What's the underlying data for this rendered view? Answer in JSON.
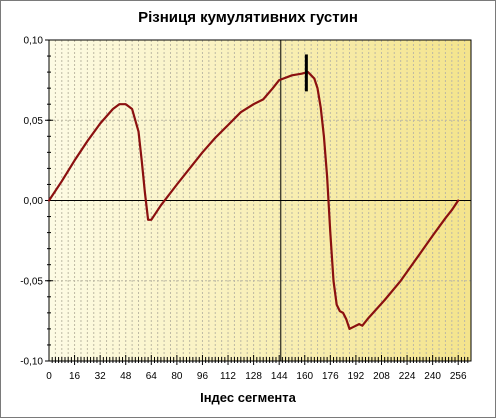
{
  "chart_data": {
    "type": "line",
    "title": "Різниця кумулятивних густин",
    "xlabel": "Індес сегмента",
    "ylabel": "",
    "xlim": [
      0,
      264
    ],
    "ylim": [
      -0.1,
      0.1
    ],
    "x_ticks": [
      0,
      16,
      32,
      48,
      64,
      80,
      96,
      112,
      128,
      144,
      160,
      176,
      192,
      208,
      224,
      240,
      256
    ],
    "y_ticks": [
      0.1,
      0.05,
      0.0,
      -0.05,
      -0.1
    ],
    "y_tick_labels": [
      "0,10",
      "0,05",
      "0,00",
      "-0,05",
      "-0,10"
    ],
    "grid": true,
    "reference_lines": {
      "x": 145,
      "y": 0
    },
    "marker": {
      "x": 161,
      "y_from": 0.068,
      "y_to": 0.091
    },
    "colors": {
      "line": "#8b1010",
      "bg_left": "#fdfbe4",
      "bg_right": "#f4e48c",
      "grid": "#bdb9a4"
    },
    "series": [
      {
        "x": [
          0,
          8,
          16,
          24,
          32,
          40,
          44,
          48,
          52,
          56,
          58,
          60,
          62,
          64,
          70,
          80,
          96,
          104,
          112,
          120,
          128,
          134,
          140,
          144,
          152,
          158,
          162,
          166,
          168,
          170,
          172,
          174,
          176,
          178,
          180,
          182,
          184,
          186,
          188,
          190,
          194,
          196,
          200,
          210,
          220,
          230,
          240,
          248,
          252,
          256
        ],
        "y": [
          0.0,
          0.012,
          0.025,
          0.037,
          0.048,
          0.057,
          0.06,
          0.06,
          0.057,
          0.043,
          0.025,
          0.005,
          -0.012,
          -0.012,
          -0.003,
          0.01,
          0.03,
          0.039,
          0.047,
          0.055,
          0.06,
          0.063,
          0.07,
          0.075,
          0.078,
          0.079,
          0.08,
          0.076,
          0.07,
          0.058,
          0.04,
          0.015,
          -0.02,
          -0.05,
          -0.065,
          -0.069,
          -0.07,
          -0.074,
          -0.08,
          -0.079,
          -0.077,
          -0.078,
          -0.073,
          -0.062,
          -0.05,
          -0.036,
          -0.022,
          -0.011,
          -0.006,
          0.0
        ]
      }
    ]
  }
}
